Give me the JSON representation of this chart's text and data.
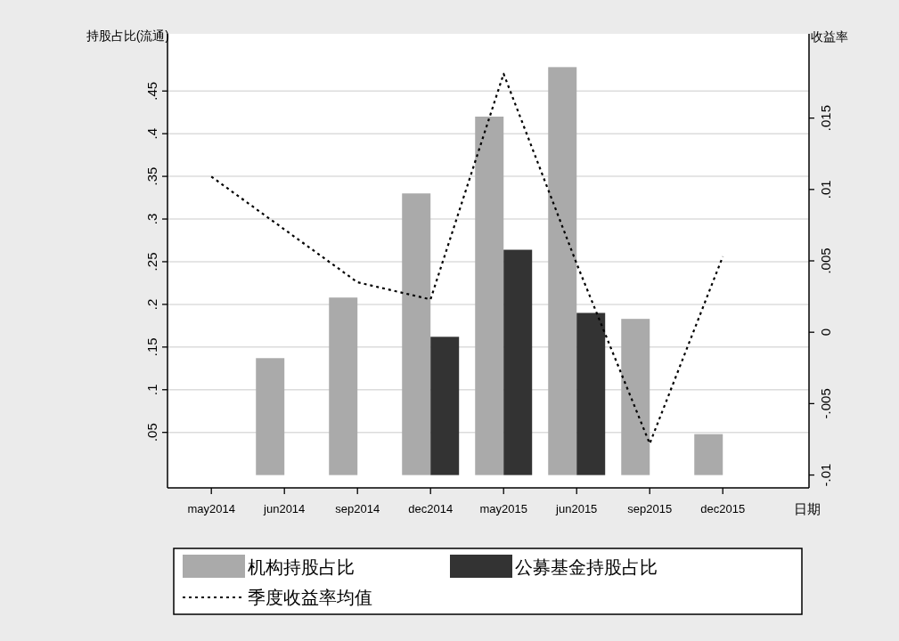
{
  "chart_data": {
    "type": "bar",
    "xlabel": "日期",
    "ylabel": "持股占比(流通)",
    "y2label": "收益率",
    "categories": [
      "may2014",
      "jun2014",
      "sep2014",
      "dec2014",
      "may2015",
      "jun2015",
      "sep2015",
      "dec2015"
    ],
    "ylim": [
      -0.015,
      0.517
    ],
    "yticks": [
      {
        "value": 0.05,
        "label": ".05"
      },
      {
        "value": 0.1,
        "label": ".1"
      },
      {
        "value": 0.15,
        "label": ".15"
      },
      {
        "value": 0.2,
        "label": ".2"
      },
      {
        "value": 0.25,
        "label": ".25"
      },
      {
        "value": 0.3,
        "label": ".3"
      },
      {
        "value": 0.35,
        "label": ".35"
      },
      {
        "value": 0.4,
        "label": ".4"
      },
      {
        "value": 0.45,
        "label": ".45"
      }
    ],
    "y2lim": [
      -0.0109,
      0.0209
    ],
    "y2ticks": [
      {
        "value": -0.01,
        "label": "-.01"
      },
      {
        "value": -0.005,
        "label": "-.005"
      },
      {
        "value": 0,
        "label": "0"
      },
      {
        "value": 0.005,
        "label": ".005"
      },
      {
        "value": 0.01,
        "label": ".01"
      },
      {
        "value": 0.015,
        "label": ".015"
      }
    ],
    "grid": "y",
    "legend": "bottom",
    "series": [
      {
        "name": "机构持股占比",
        "color": "#aaaaaa",
        "values": [
          null,
          0.137,
          0.208,
          0.33,
          0.42,
          0.478,
          0.183,
          0.048
        ]
      },
      {
        "name": "公募基金持股占比",
        "color": "#333333",
        "values": [
          null,
          null,
          null,
          0.162,
          0.264,
          0.19,
          null,
          null
        ]
      },
      {
        "name": "季度收益率均值",
        "type": "line",
        "axis": "y2",
        "color": "#000000",
        "line_style": "dotted",
        "values": [
          0.0109,
          0.0072,
          0.0035,
          0.0023,
          0.0181,
          0.0048,
          -0.0078,
          0.0053
        ]
      }
    ]
  }
}
